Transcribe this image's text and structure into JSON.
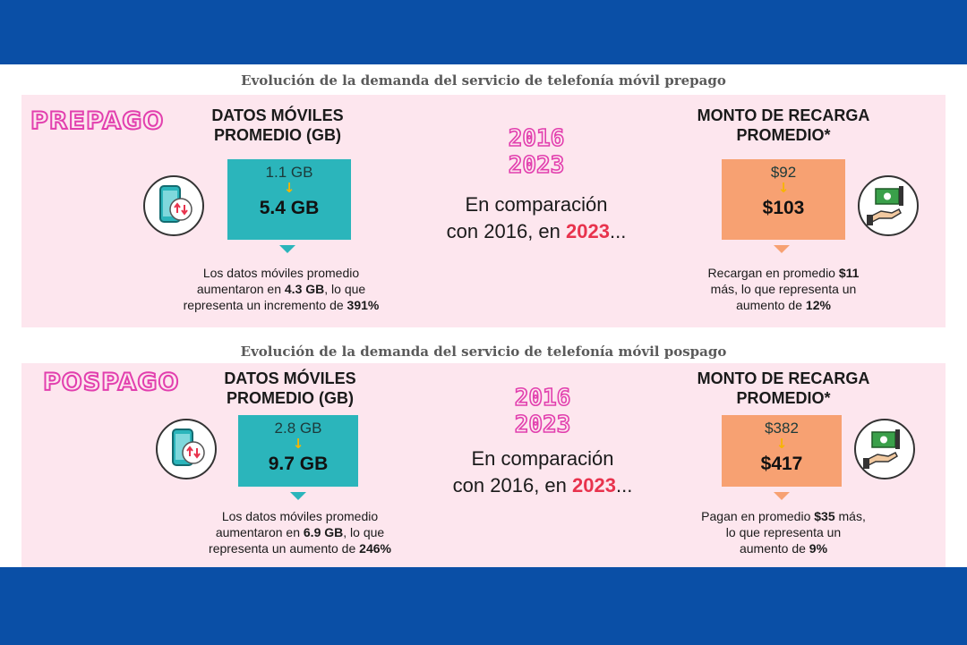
{
  "colors": {
    "frame": "#0a4fa6",
    "panel": "#fde6ee",
    "accent_pink": "#e23fae",
    "teal": "#2bb5bb",
    "orange": "#f7a172",
    "highlight": "#e8334d",
    "arrow": "#f7b500"
  },
  "prepago": {
    "heading": "Evolución de la demanda del servicio de telefonía móvil prepago",
    "label": "PREPAGO",
    "data": {
      "title_line1": "DATOS MÓVILES",
      "title_line2": "PROMEDIO (GB)",
      "icon": "phone-data-icon",
      "from": "1.1 GB",
      "to": "5.4 GB",
      "desc1": "Los datos móviles promedio",
      "desc2a": "aumentaron en ",
      "desc2b": "4.3 GB",
      "desc2c": ", lo que",
      "desc3a": "representa un incremento de ",
      "desc3b": "391%"
    },
    "years": {
      "y1": "2016",
      "y2": "2023"
    },
    "compare": {
      "line1": "En comparación",
      "line2a": "con 2016, en ",
      "line2b": "2023",
      "line2c": "..."
    },
    "recharge": {
      "title_line1": "MONTO DE RECARGA",
      "title_line2": "PROMEDIO*",
      "icon": "money-hand-icon",
      "from": "$92",
      "to": "$103",
      "desc1a": "Recargan en promedio ",
      "desc1b": "$11",
      "desc2": "más, lo que representa un",
      "desc3a": "aumento de ",
      "desc3b": "12%"
    }
  },
  "pospago": {
    "heading": "Evolución de la demanda del servicio de telefonía móvil pospago",
    "label": "POSPAGO",
    "data": {
      "title_line1": "DATOS MÓVILES",
      "title_line2": "PROMEDIO (GB)",
      "icon": "phone-data-icon",
      "from": "2.8 GB",
      "to": "9.7 GB",
      "desc1": "Los datos móviles promedio",
      "desc2a": "aumentaron en ",
      "desc2b": "6.9 GB",
      "desc2c": ", lo que",
      "desc3a": "representa un aumento de ",
      "desc3b": "246%"
    },
    "years": {
      "y1": "2016",
      "y2": "2023"
    },
    "compare": {
      "line1": "En comparación",
      "line2a": "con 2016, en ",
      "line2b": "2023",
      "line2c": "..."
    },
    "recharge": {
      "title_line1": "MONTO DE RECARGA",
      "title_line2": "PROMEDIO*",
      "icon": "money-hand-icon",
      "from": "$382",
      "to": "$417",
      "desc1a": "Pagan en promedio ",
      "desc1b": "$35",
      "desc1c": " más,",
      "desc2": "lo que representa un",
      "desc3a": "aumento de ",
      "desc3b": "9%"
    }
  }
}
